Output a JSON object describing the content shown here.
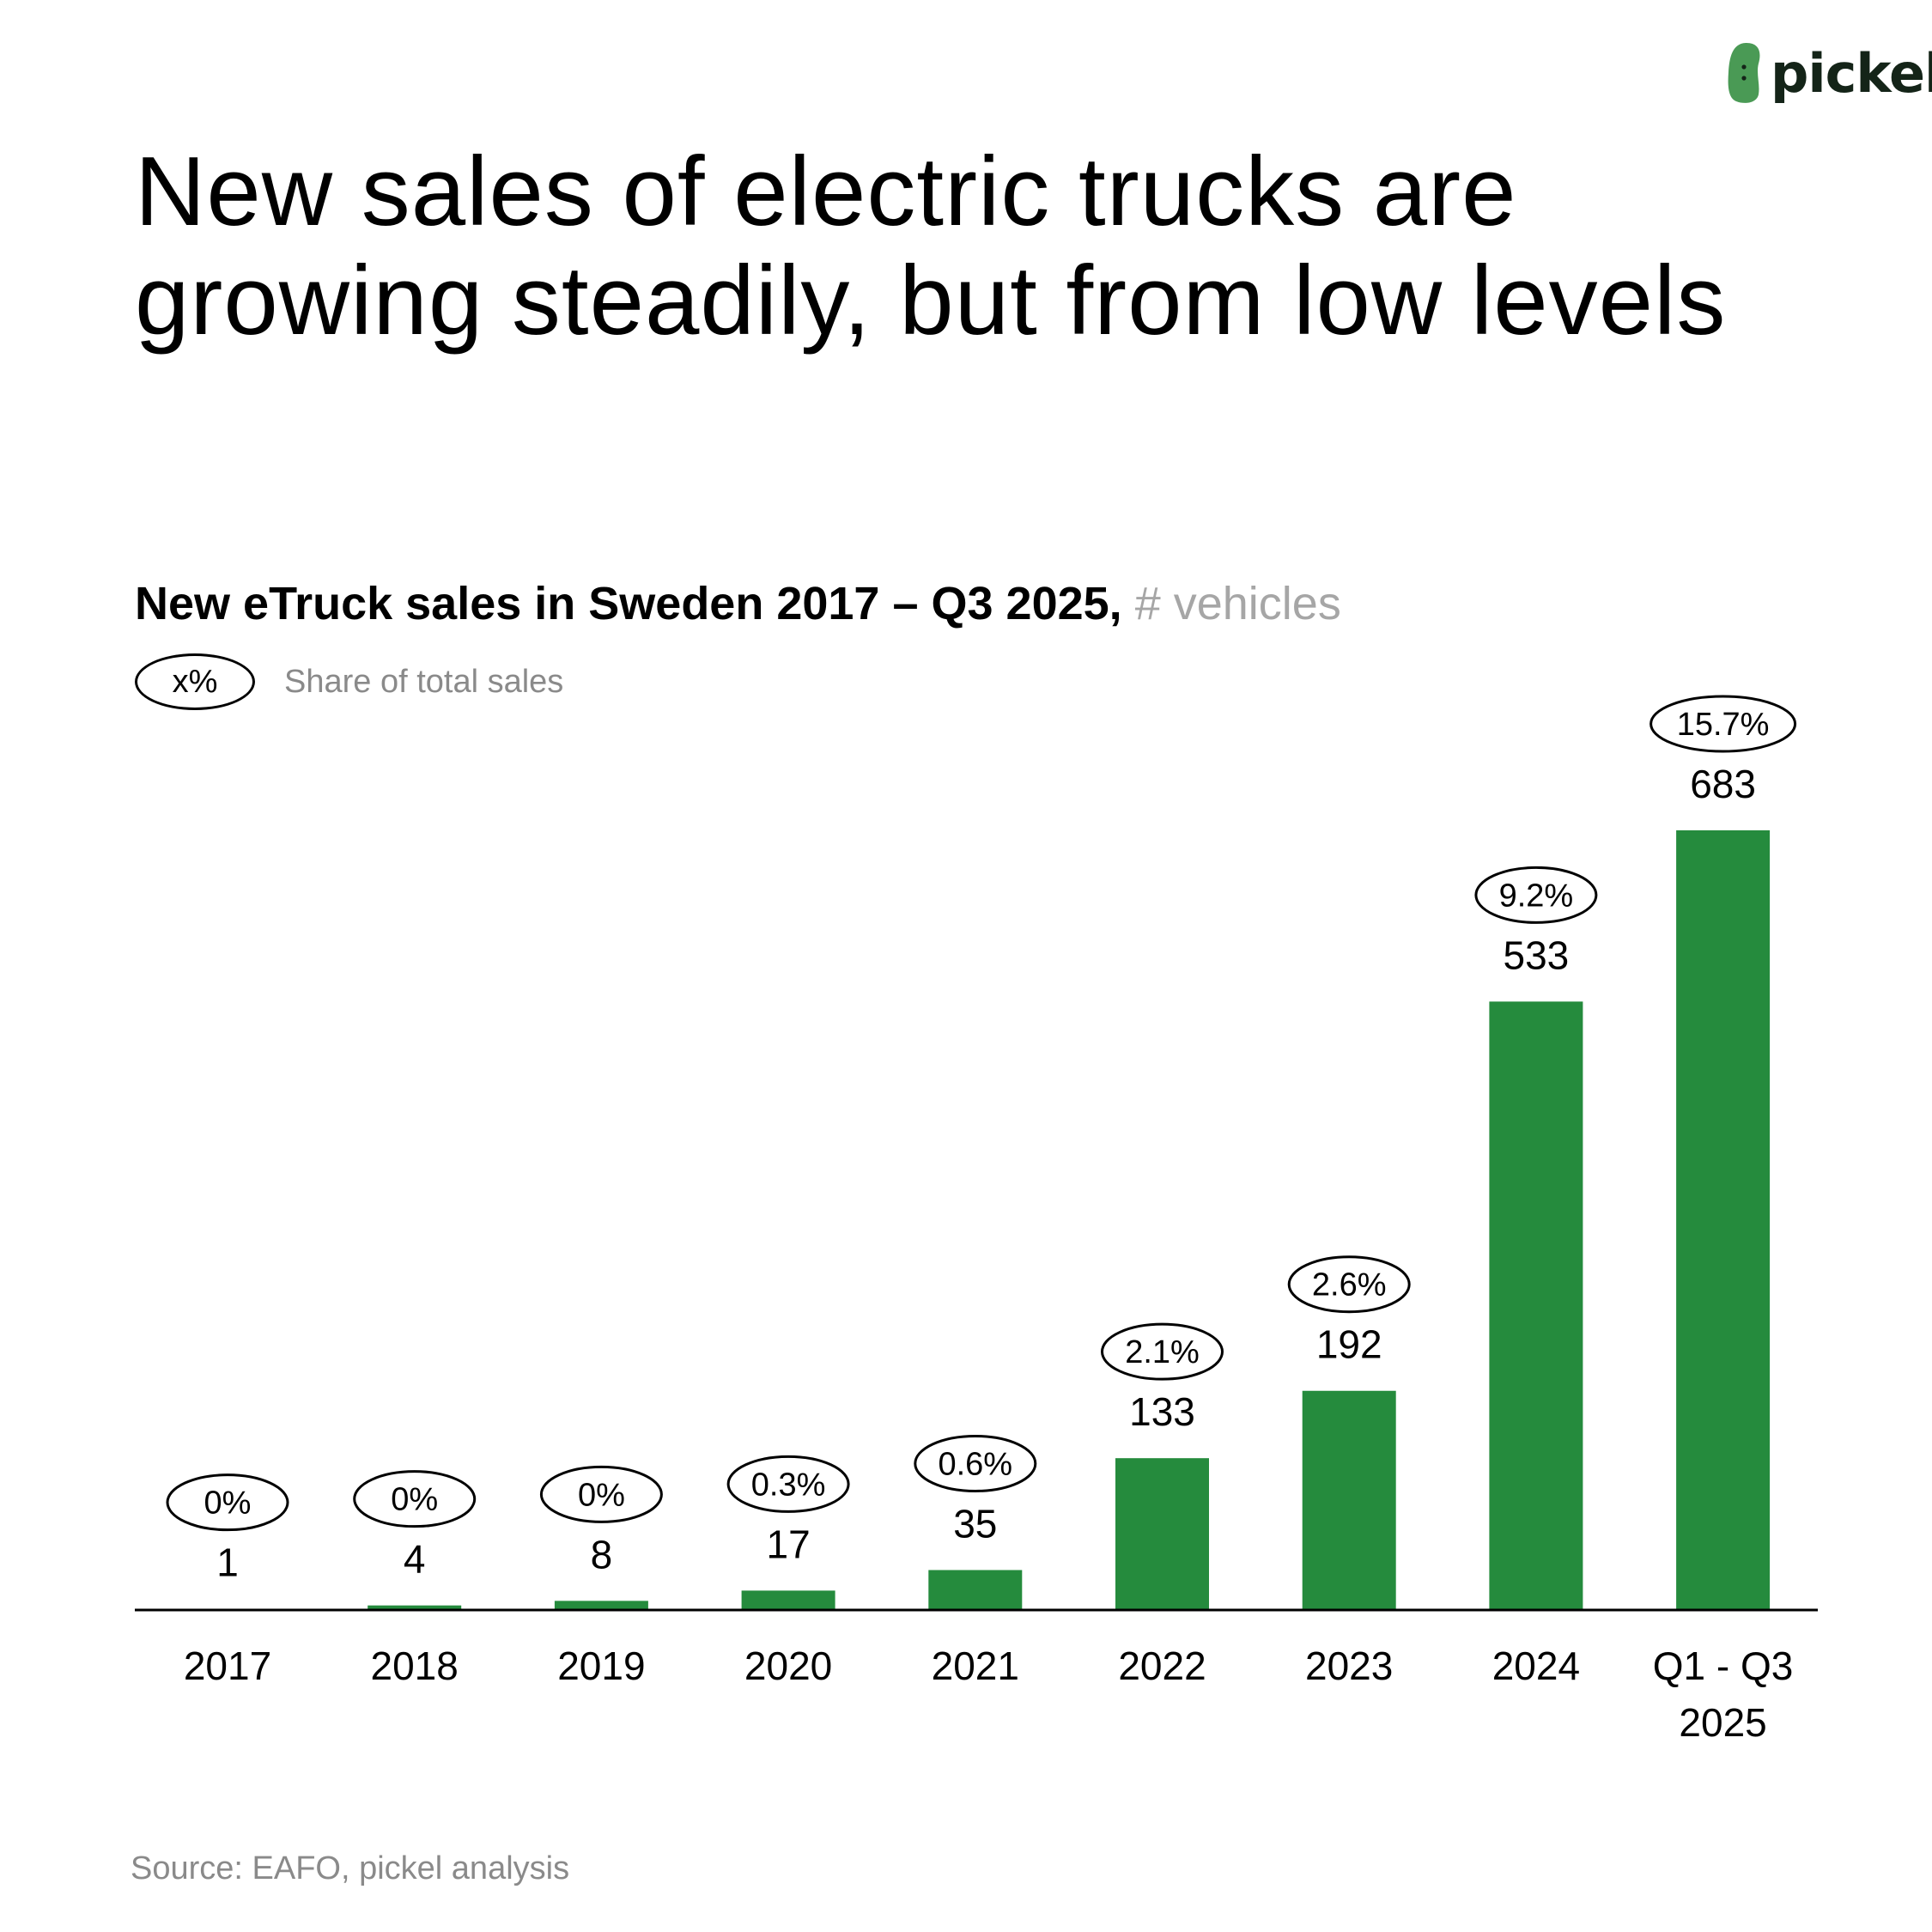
{
  "brand": {
    "logo_text": "pickel",
    "logo_color": "#4a9a55"
  },
  "title": "New sales of electric trucks are growing steadily, but from low levels",
  "chart_data": {
    "type": "bar",
    "title": "New eTruck sales in Sweden 2017 – Q3 2025,",
    "unit": "# vehicles",
    "legend": {
      "marker": "x%",
      "label": "Share of total sales"
    },
    "categories": [
      "2017",
      "2018",
      "2019",
      "2020",
      "2021",
      "2022",
      "2023",
      "2024",
      "Q1 - Q3 2025"
    ],
    "values": [
      1,
      4,
      8,
      17,
      35,
      133,
      192,
      533,
      683
    ],
    "value_labels": [
      "1",
      "4",
      "8",
      "17",
      "35",
      "133",
      "192",
      "533",
      "683"
    ],
    "share_labels": [
      "0%",
      "0%",
      "0%",
      "0.3%",
      "0.6%",
      "2.1%",
      "2.6%",
      "9.2%",
      "15.7%"
    ],
    "bar_color": "#258b3d",
    "ylim": [
      0,
      683
    ],
    "grid": false
  },
  "source": "Source: EAFO, pickel analysis"
}
